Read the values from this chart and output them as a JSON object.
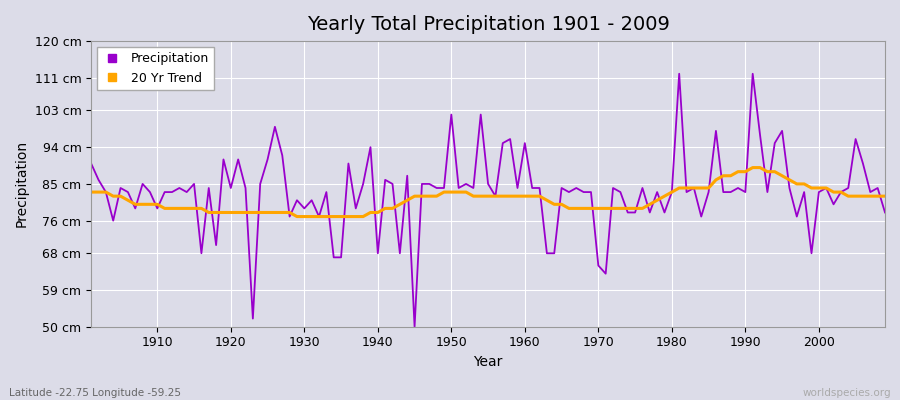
{
  "title": "Yearly Total Precipitation 1901 - 2009",
  "xlabel": "Year",
  "ylabel": "Precipitation",
  "lat_lon_label": "Latitude -22.75 Longitude -59.25",
  "watermark": "worldspecies.org",
  "ylim": [
    50,
    120
  ],
  "yticks": [
    50,
    59,
    68,
    76,
    85,
    94,
    103,
    111,
    120
  ],
  "ytick_labels": [
    "50 cm",
    "59 cm",
    "68 cm",
    "76 cm",
    "85 cm",
    "94 cm",
    "103 cm",
    "111 cm",
    "120 cm"
  ],
  "xticks": [
    1910,
    1920,
    1930,
    1940,
    1950,
    1960,
    1970,
    1980,
    1990,
    2000
  ],
  "years": [
    1901,
    1902,
    1903,
    1904,
    1905,
    1906,
    1907,
    1908,
    1909,
    1910,
    1911,
    1912,
    1913,
    1914,
    1915,
    1916,
    1917,
    1918,
    1919,
    1920,
    1921,
    1922,
    1923,
    1924,
    1925,
    1926,
    1927,
    1928,
    1929,
    1930,
    1931,
    1932,
    1933,
    1934,
    1935,
    1936,
    1937,
    1938,
    1939,
    1940,
    1941,
    1942,
    1943,
    1944,
    1945,
    1946,
    1947,
    1948,
    1949,
    1950,
    1951,
    1952,
    1953,
    1954,
    1955,
    1956,
    1957,
    1958,
    1959,
    1960,
    1961,
    1962,
    1963,
    1964,
    1965,
    1966,
    1967,
    1968,
    1969,
    1970,
    1971,
    1972,
    1973,
    1974,
    1975,
    1976,
    1977,
    1978,
    1979,
    1980,
    1981,
    1982,
    1983,
    1984,
    1985,
    1986,
    1987,
    1988,
    1989,
    1990,
    1991,
    1992,
    1993,
    1994,
    1995,
    1996,
    1997,
    1998,
    1999,
    2000,
    2001,
    2002,
    2003,
    2004,
    2005,
    2006,
    2007,
    2008,
    2009
  ],
  "precip": [
    90,
    86,
    83,
    76,
    84,
    83,
    79,
    85,
    83,
    79,
    83,
    83,
    84,
    83,
    85,
    68,
    84,
    70,
    91,
    84,
    91,
    84,
    52,
    85,
    91,
    99,
    92,
    77,
    81,
    79,
    81,
    77,
    83,
    67,
    67,
    90,
    79,
    85,
    94,
    68,
    86,
    85,
    68,
    87,
    50,
    85,
    85,
    84,
    84,
    102,
    84,
    85,
    84,
    102,
    85,
    82,
    95,
    96,
    84,
    95,
    84,
    84,
    68,
    68,
    84,
    83,
    84,
    83,
    83,
    65,
    63,
    84,
    83,
    78,
    78,
    84,
    78,
    83,
    78,
    83,
    112,
    83,
    84,
    77,
    83,
    98,
    83,
    83,
    84,
    83,
    112,
    97,
    83,
    95,
    98,
    84,
    77,
    83,
    68,
    83,
    84,
    80,
    83,
    84,
    96,
    90,
    83,
    84,
    78
  ],
  "trend": [
    83,
    83,
    83,
    82,
    82,
    81,
    80,
    80,
    80,
    80,
    79,
    79,
    79,
    79,
    79,
    79,
    78,
    78,
    78,
    78,
    78,
    78,
    78,
    78,
    78,
    78,
    78,
    78,
    77,
    77,
    77,
    77,
    77,
    77,
    77,
    77,
    77,
    77,
    78,
    78,
    79,
    79,
    80,
    81,
    82,
    82,
    82,
    82,
    83,
    83,
    83,
    83,
    82,
    82,
    82,
    82,
    82,
    82,
    82,
    82,
    82,
    82,
    81,
    80,
    80,
    79,
    79,
    79,
    79,
    79,
    79,
    79,
    79,
    79,
    79,
    79,
    80,
    81,
    82,
    83,
    84,
    84,
    84,
    84,
    84,
    86,
    87,
    87,
    88,
    88,
    89,
    89,
    88,
    88,
    87,
    86,
    85,
    85,
    84,
    84,
    84,
    83,
    83,
    82,
    82,
    82,
    82,
    82,
    82
  ],
  "precip_color": "#9900cc",
  "trend_color": "#ffa500",
  "bg_color": "#dcdce8",
  "grid_color": "#ffffff",
  "title_fontsize": 14,
  "label_fontsize": 10,
  "tick_fontsize": 9,
  "lat_lon_color": "#666666",
  "watermark_color": "#aaaaaa"
}
